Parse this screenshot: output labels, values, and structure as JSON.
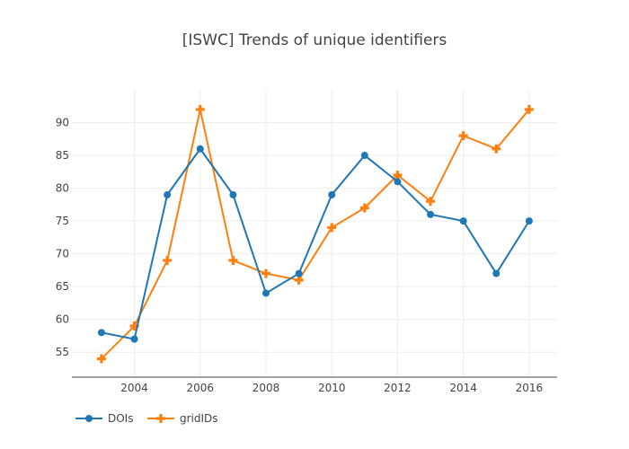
{
  "chart_data": {
    "type": "line",
    "title": "[ISWC] Trends of unique identifiers",
    "xlabel": "",
    "ylabel": "",
    "x": [
      2003,
      2004,
      2005,
      2006,
      2007,
      2008,
      2009,
      2010,
      2011,
      2012,
      2013,
      2014,
      2015,
      2016
    ],
    "xlim": [
      2002.1,
      2016.85
    ],
    "ylim": [
      51.2,
      95.0
    ],
    "xticks": [
      2004,
      2006,
      2008,
      2010,
      2012,
      2014,
      2016
    ],
    "yticks": [
      55,
      60,
      65,
      70,
      75,
      80,
      85,
      90
    ],
    "grid": true,
    "legend_position": "bottom-left",
    "series": [
      {
        "name": "DOIs",
        "color": "#1f77b4",
        "marker": "circle",
        "values": [
          58,
          57,
          79,
          86,
          79,
          64,
          67,
          79,
          85,
          81,
          76,
          75,
          67,
          75
        ]
      },
      {
        "name": "gridIDs",
        "color": "#ff7f0e",
        "marker": "cross",
        "values": [
          54,
          59,
          69,
          92,
          69,
          67,
          66,
          74,
          77,
          82,
          78,
          88,
          86,
          92
        ]
      }
    ]
  }
}
